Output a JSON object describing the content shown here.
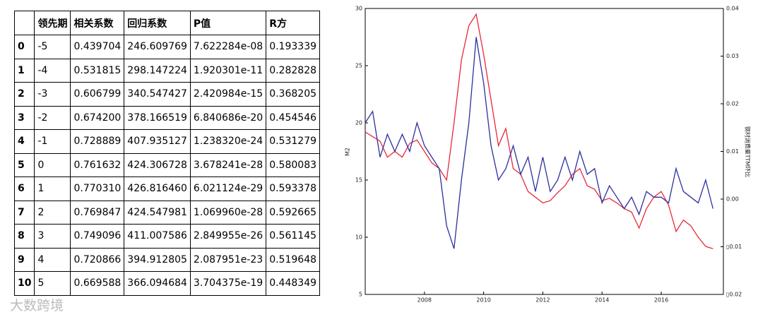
{
  "table": {
    "header": [
      "",
      "领先期",
      "相关系数",
      "回归系数",
      "P值",
      "R方"
    ],
    "rows": [
      [
        "0",
        "-5",
        "0.439704",
        "246.609769",
        "7.622284e-08",
        "0.193339"
      ],
      [
        "1",
        "-4",
        "0.531815",
        "298.147224",
        "1.920301e-11",
        "0.282828"
      ],
      [
        "2",
        "-3",
        "0.606799",
        "340.547427",
        "2.420984e-15",
        "0.368205"
      ],
      [
        "3",
        "-2",
        "0.674200",
        "378.166519",
        "6.840686e-20",
        "0.454546"
      ],
      [
        "4",
        "-1",
        "0.728889",
        "407.935127",
        "1.238320e-24",
        "0.531279"
      ],
      [
        "5",
        "0",
        "0.761632",
        "424.306728",
        "3.678241e-28",
        "0.580083"
      ],
      [
        "6",
        "1",
        "0.770310",
        "426.816460",
        "6.021124e-29",
        "0.593378"
      ],
      [
        "7",
        "2",
        "0.769847",
        "424.547981",
        "1.069960e-28",
        "0.592665"
      ],
      [
        "8",
        "3",
        "0.749096",
        "411.007586",
        "2.849955e-26",
        "0.561145"
      ],
      [
        "9",
        "4",
        "0.720866",
        "394.912805",
        "2.087951e-23",
        "0.519648"
      ],
      [
        "10",
        "5",
        "0.669588",
        "366.094684",
        "3.704375e-19",
        "0.448349"
      ]
    ]
  },
  "watermark": "大数跨境",
  "chart_data": {
    "type": "line",
    "ylabel": "M2",
    "y2label": "钢材消费量TTM环比",
    "x": [
      2006,
      2006.25,
      2006.5,
      2006.75,
      2007,
      2007.25,
      2007.5,
      2007.75,
      2008,
      2008.25,
      2008.5,
      2008.75,
      2009,
      2009.25,
      2009.5,
      2009.75,
      2010,
      2010.25,
      2010.5,
      2010.75,
      2011,
      2011.25,
      2011.5,
      2011.75,
      2012,
      2012.25,
      2012.5,
      2012.75,
      2013,
      2013.25,
      2013.5,
      2013.75,
      2014,
      2014.25,
      2014.5,
      2014.75,
      2015,
      2015.25,
      2015.5,
      2015.75,
      2016,
      2016.25,
      2016.5,
      2016.75,
      2017,
      2017.25,
      2017.5,
      2017.75
    ],
    "series": [
      {
        "color": "#e8283a",
        "values": [
          19.2,
          18.8,
          18.4,
          17.0,
          17.5,
          17.0,
          18.2,
          18.5,
          17.5,
          16.5,
          16.0,
          15.0,
          20.0,
          25.5,
          28.5,
          29.5,
          26.0,
          22.0,
          18.0,
          19.5,
          16.0,
          15.5,
          14.0,
          13.5,
          13.0,
          13.2,
          13.9,
          14.5,
          15.5,
          16.0,
          14.5,
          14.2,
          13.2,
          13.4,
          13.0,
          12.5,
          12.2,
          10.8,
          12.5,
          13.5,
          14.0,
          12.8,
          10.5,
          11.5,
          11.0,
          10.0,
          9.2,
          9.0
        ]
      },
      {
        "color": "#2c2f9e",
        "axis": "y2",
        "values": [
          0.016,
          0.0184,
          0.0088,
          0.0136,
          0.01,
          0.0136,
          0.01,
          0.016,
          0.0112,
          0.0088,
          0.0064,
          -0.0056,
          -0.0104,
          0.004,
          0.016,
          0.034,
          0.0244,
          0.0112,
          0.004,
          0.0064,
          0.0112,
          0.0052,
          0.0088,
          0.0016,
          0.0088,
          0.0016,
          0.004,
          0.0088,
          0.004,
          0.01,
          0.0052,
          0.0064,
          -0.0008,
          0.0028,
          0.0004,
          -0.002,
          0.0004,
          -0.0032,
          0.0016,
          0.0004,
          0.0004,
          -0.0008,
          0.0064,
          0.0016,
          0.0004,
          -0.0008,
          0.004,
          -0.002
        ]
      }
    ],
    "xlim": [
      2006,
      2018.1
    ],
    "xticks": [
      2008,
      2010,
      2012,
      2014,
      2016
    ],
    "ylim": [
      5,
      30
    ],
    "yticks": [
      5,
      10,
      15,
      20,
      25,
      30
    ],
    "y2lim": [
      -0.02,
      0.04
    ],
    "y2ticks": [
      {
        "value": -0.02,
        "label": "▯0.02"
      },
      {
        "value": -0.01,
        "label": "▯0.01"
      },
      {
        "value": 0,
        "label": "0.00"
      },
      0.01,
      0.02,
      0.03,
      0.04
    ]
  }
}
